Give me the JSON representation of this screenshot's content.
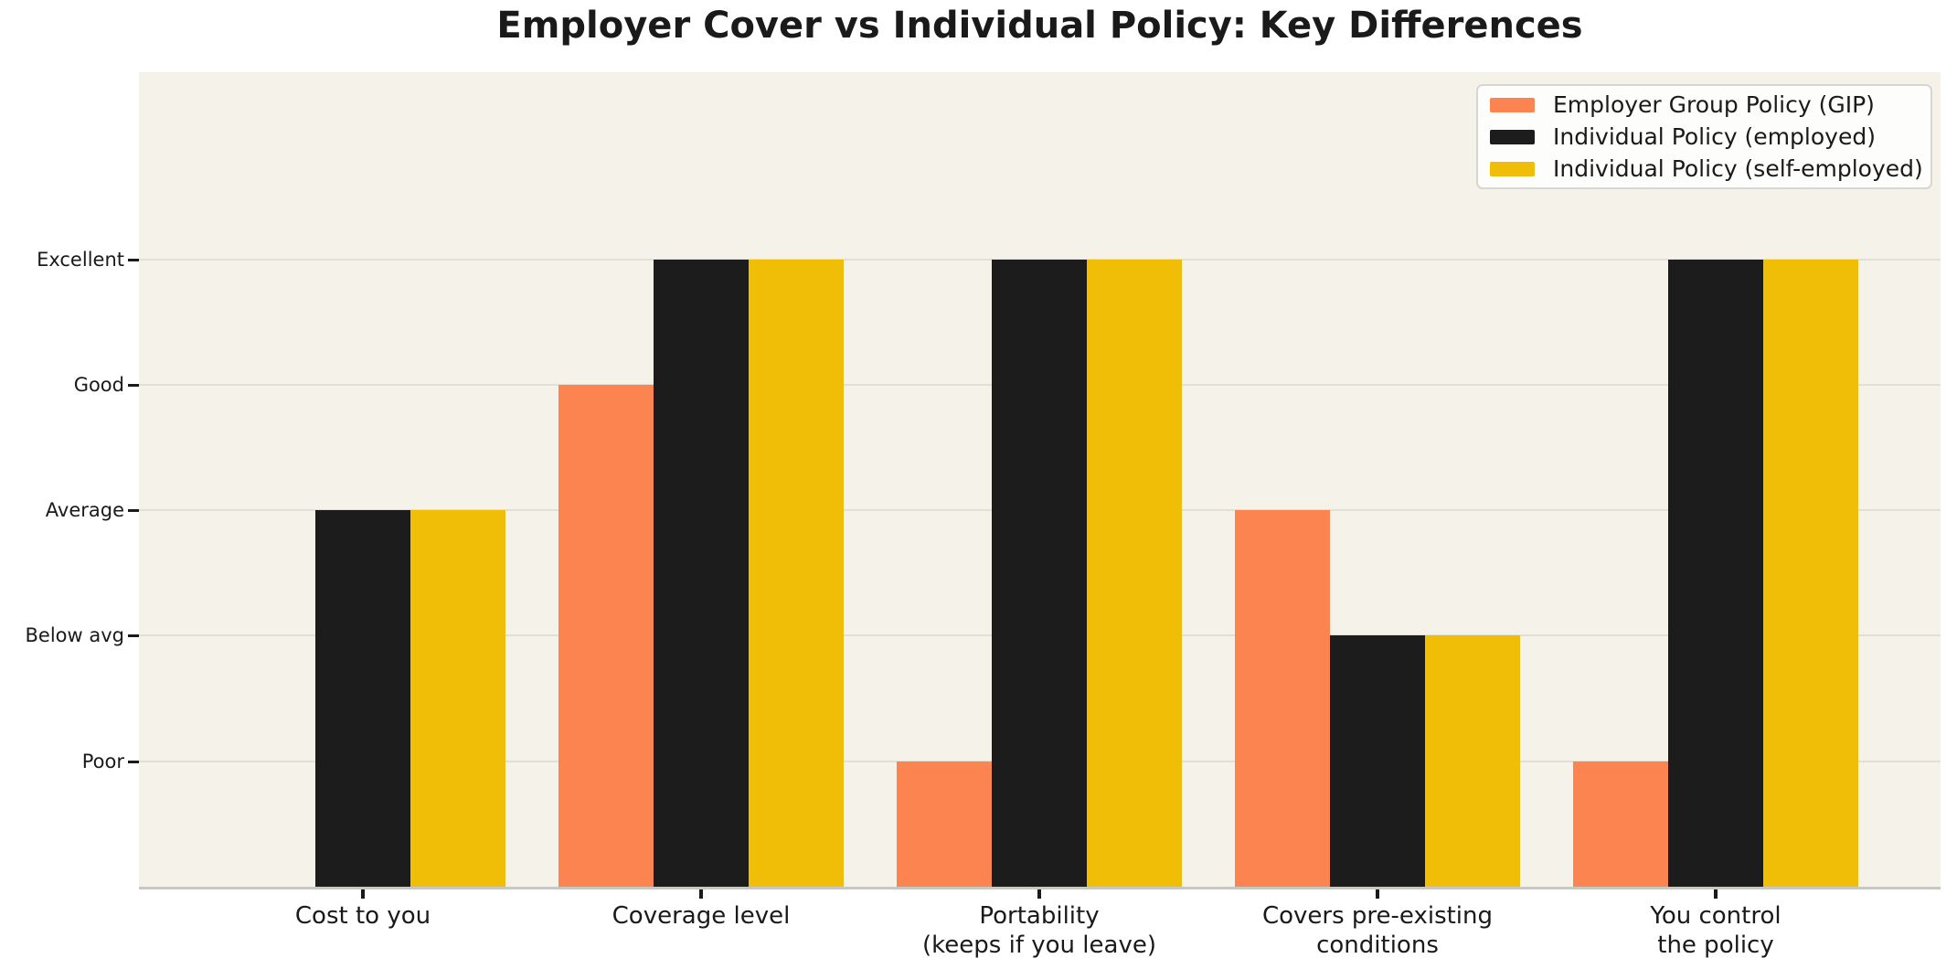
{
  "chart_data": {
    "type": "bar",
    "title": "Employer Cover vs Individual Policy: Key Differences",
    "categories": [
      "Cost to you",
      "Coverage level",
      "Portability\n(keeps if you leave)",
      "Covers pre-existing\nconditions",
      "You control\nthe policy"
    ],
    "series": [
      {
        "name": "Employer Group Policy (GIP)",
        "color": "#FB8450",
        "values": [
          0,
          4,
          1,
          3,
          1
        ]
      },
      {
        "name": "Individual Policy (employed)",
        "color": "#1C1C1C",
        "values": [
          3,
          5,
          5,
          2,
          5
        ]
      },
      {
        "name": "Individual Policy (self-employed)",
        "color": "#F0BE06",
        "values": [
          3,
          5,
          5,
          2,
          5
        ]
      }
    ],
    "y_tick_labels": [
      "Poor",
      "Below avg",
      "Average",
      "Good",
      "Excellent"
    ],
    "y_tick_values": [
      1,
      2,
      3,
      4,
      5
    ],
    "ylim": [
      0,
      6.49
    ],
    "xlabel": "",
    "ylabel": "",
    "grid": "horizontal",
    "legend_position": "top-right"
  },
  "colors": {
    "figure_background": "#FFFFFF",
    "plot_background": "#F5F2E9",
    "gridline": "#E2DFD6",
    "axis_line": "#C9C7C1",
    "tick_mark": "#1A1A1A",
    "text": "#1A1A1A",
    "legend_background": "#FDFDFB",
    "legend_border": "#D8D6D0"
  }
}
